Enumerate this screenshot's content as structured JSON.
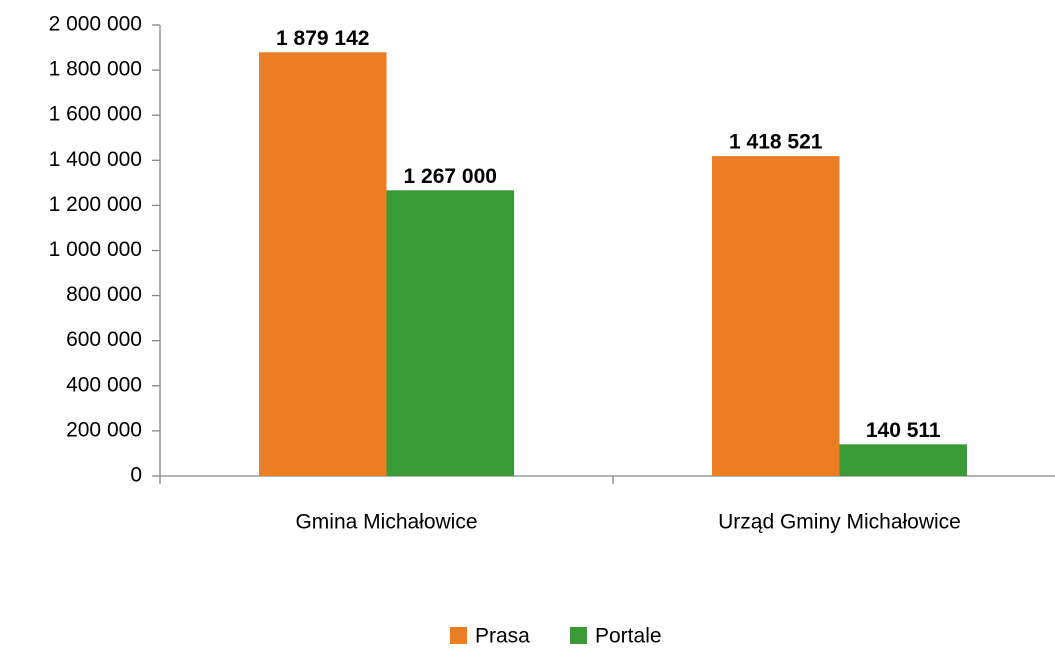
{
  "chart_data": {
    "type": "bar",
    "categories": [
      "Gmina Michałowice",
      "Urząd Gminy Michałowice"
    ],
    "series": [
      {
        "name": "Prasa",
        "color": "#ed7d22",
        "values": [
          1879142,
          1418521
        ],
        "value_labels": [
          "1 879 142",
          "1 418 521"
        ]
      },
      {
        "name": "Portale",
        "color": "#3a9a35",
        "values": [
          1267000,
          140511
        ],
        "value_labels": [
          "1 267 000",
          "140 511"
        ]
      }
    ],
    "ylim": [
      0,
      2000000
    ],
    "yticks": [
      0,
      {
        "value": 200000,
        "label": "200 000"
      },
      {
        "value": 400000,
        "label": "400 000"
      },
      {
        "value": 600000,
        "label": "600 000"
      },
      {
        "value": 800000,
        "label": "800 000"
      },
      {
        "value": 1000000,
        "label": "1 000 000"
      },
      {
        "value": 1200000,
        "label": "1 200 000"
      },
      {
        "value": 1400000,
        "label": "1 400 000"
      },
      {
        "value": 1600000,
        "label": "1 600 000"
      },
      {
        "value": 1800000,
        "label": "1 800 000"
      },
      {
        "value": 2000000,
        "label": "2 000 000"
      }
    ],
    "grid": false,
    "legend": "bottom"
  }
}
